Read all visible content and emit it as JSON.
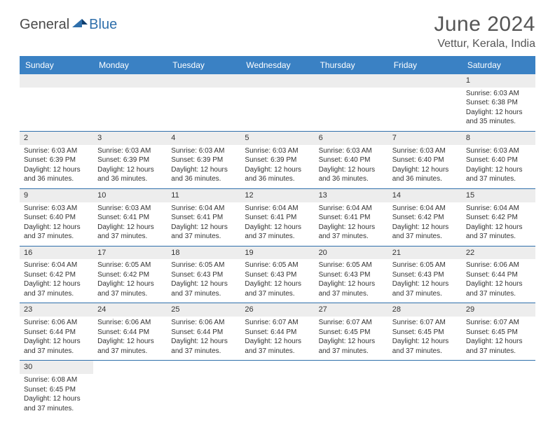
{
  "logo": {
    "part1": "General",
    "part2": "Blue"
  },
  "title": "June 2024",
  "location": "Vettur, Kerala, India",
  "colors": {
    "header_bg": "#3a81c4",
    "header_text": "#ffffff",
    "row_divider": "#2f6fab",
    "daynum_bg": "#ededed",
    "text": "#333333",
    "title_text": "#555555"
  },
  "fonts": {
    "title_size": 30,
    "location_size": 16,
    "dayhead_size": 12,
    "daynum_size": 11,
    "body_size": 10
  },
  "day_headers": [
    "Sunday",
    "Monday",
    "Tuesday",
    "Wednesday",
    "Thursday",
    "Friday",
    "Saturday"
  ],
  "weeks": [
    [
      null,
      null,
      null,
      null,
      null,
      null,
      {
        "n": "1",
        "sunrise": "Sunrise: 6:03 AM",
        "sunset": "Sunset: 6:38 PM",
        "day1": "Daylight: 12 hours",
        "day2": "and 35 minutes."
      }
    ],
    [
      {
        "n": "2",
        "sunrise": "Sunrise: 6:03 AM",
        "sunset": "Sunset: 6:39 PM",
        "day1": "Daylight: 12 hours",
        "day2": "and 36 minutes."
      },
      {
        "n": "3",
        "sunrise": "Sunrise: 6:03 AM",
        "sunset": "Sunset: 6:39 PM",
        "day1": "Daylight: 12 hours",
        "day2": "and 36 minutes."
      },
      {
        "n": "4",
        "sunrise": "Sunrise: 6:03 AM",
        "sunset": "Sunset: 6:39 PM",
        "day1": "Daylight: 12 hours",
        "day2": "and 36 minutes."
      },
      {
        "n": "5",
        "sunrise": "Sunrise: 6:03 AM",
        "sunset": "Sunset: 6:39 PM",
        "day1": "Daylight: 12 hours",
        "day2": "and 36 minutes."
      },
      {
        "n": "6",
        "sunrise": "Sunrise: 6:03 AM",
        "sunset": "Sunset: 6:40 PM",
        "day1": "Daylight: 12 hours",
        "day2": "and 36 minutes."
      },
      {
        "n": "7",
        "sunrise": "Sunrise: 6:03 AM",
        "sunset": "Sunset: 6:40 PM",
        "day1": "Daylight: 12 hours",
        "day2": "and 36 minutes."
      },
      {
        "n": "8",
        "sunrise": "Sunrise: 6:03 AM",
        "sunset": "Sunset: 6:40 PM",
        "day1": "Daylight: 12 hours",
        "day2": "and 37 minutes."
      }
    ],
    [
      {
        "n": "9",
        "sunrise": "Sunrise: 6:03 AM",
        "sunset": "Sunset: 6:40 PM",
        "day1": "Daylight: 12 hours",
        "day2": "and 37 minutes."
      },
      {
        "n": "10",
        "sunrise": "Sunrise: 6:03 AM",
        "sunset": "Sunset: 6:41 PM",
        "day1": "Daylight: 12 hours",
        "day2": "and 37 minutes."
      },
      {
        "n": "11",
        "sunrise": "Sunrise: 6:04 AM",
        "sunset": "Sunset: 6:41 PM",
        "day1": "Daylight: 12 hours",
        "day2": "and 37 minutes."
      },
      {
        "n": "12",
        "sunrise": "Sunrise: 6:04 AM",
        "sunset": "Sunset: 6:41 PM",
        "day1": "Daylight: 12 hours",
        "day2": "and 37 minutes."
      },
      {
        "n": "13",
        "sunrise": "Sunrise: 6:04 AM",
        "sunset": "Sunset: 6:41 PM",
        "day1": "Daylight: 12 hours",
        "day2": "and 37 minutes."
      },
      {
        "n": "14",
        "sunrise": "Sunrise: 6:04 AM",
        "sunset": "Sunset: 6:42 PM",
        "day1": "Daylight: 12 hours",
        "day2": "and 37 minutes."
      },
      {
        "n": "15",
        "sunrise": "Sunrise: 6:04 AM",
        "sunset": "Sunset: 6:42 PM",
        "day1": "Daylight: 12 hours",
        "day2": "and 37 minutes."
      }
    ],
    [
      {
        "n": "16",
        "sunrise": "Sunrise: 6:04 AM",
        "sunset": "Sunset: 6:42 PM",
        "day1": "Daylight: 12 hours",
        "day2": "and 37 minutes."
      },
      {
        "n": "17",
        "sunrise": "Sunrise: 6:05 AM",
        "sunset": "Sunset: 6:42 PM",
        "day1": "Daylight: 12 hours",
        "day2": "and 37 minutes."
      },
      {
        "n": "18",
        "sunrise": "Sunrise: 6:05 AM",
        "sunset": "Sunset: 6:43 PM",
        "day1": "Daylight: 12 hours",
        "day2": "and 37 minutes."
      },
      {
        "n": "19",
        "sunrise": "Sunrise: 6:05 AM",
        "sunset": "Sunset: 6:43 PM",
        "day1": "Daylight: 12 hours",
        "day2": "and 37 minutes."
      },
      {
        "n": "20",
        "sunrise": "Sunrise: 6:05 AM",
        "sunset": "Sunset: 6:43 PM",
        "day1": "Daylight: 12 hours",
        "day2": "and 37 minutes."
      },
      {
        "n": "21",
        "sunrise": "Sunrise: 6:05 AM",
        "sunset": "Sunset: 6:43 PM",
        "day1": "Daylight: 12 hours",
        "day2": "and 37 minutes."
      },
      {
        "n": "22",
        "sunrise": "Sunrise: 6:06 AM",
        "sunset": "Sunset: 6:44 PM",
        "day1": "Daylight: 12 hours",
        "day2": "and 37 minutes."
      }
    ],
    [
      {
        "n": "23",
        "sunrise": "Sunrise: 6:06 AM",
        "sunset": "Sunset: 6:44 PM",
        "day1": "Daylight: 12 hours",
        "day2": "and 37 minutes."
      },
      {
        "n": "24",
        "sunrise": "Sunrise: 6:06 AM",
        "sunset": "Sunset: 6:44 PM",
        "day1": "Daylight: 12 hours",
        "day2": "and 37 minutes."
      },
      {
        "n": "25",
        "sunrise": "Sunrise: 6:06 AM",
        "sunset": "Sunset: 6:44 PM",
        "day1": "Daylight: 12 hours",
        "day2": "and 37 minutes."
      },
      {
        "n": "26",
        "sunrise": "Sunrise: 6:07 AM",
        "sunset": "Sunset: 6:44 PM",
        "day1": "Daylight: 12 hours",
        "day2": "and 37 minutes."
      },
      {
        "n": "27",
        "sunrise": "Sunrise: 6:07 AM",
        "sunset": "Sunset: 6:45 PM",
        "day1": "Daylight: 12 hours",
        "day2": "and 37 minutes."
      },
      {
        "n": "28",
        "sunrise": "Sunrise: 6:07 AM",
        "sunset": "Sunset: 6:45 PM",
        "day1": "Daylight: 12 hours",
        "day2": "and 37 minutes."
      },
      {
        "n": "29",
        "sunrise": "Sunrise: 6:07 AM",
        "sunset": "Sunset: 6:45 PM",
        "day1": "Daylight: 12 hours",
        "day2": "and 37 minutes."
      }
    ],
    [
      {
        "n": "30",
        "sunrise": "Sunrise: 6:08 AM",
        "sunset": "Sunset: 6:45 PM",
        "day1": "Daylight: 12 hours",
        "day2": "and 37 minutes."
      },
      null,
      null,
      null,
      null,
      null,
      null
    ]
  ]
}
